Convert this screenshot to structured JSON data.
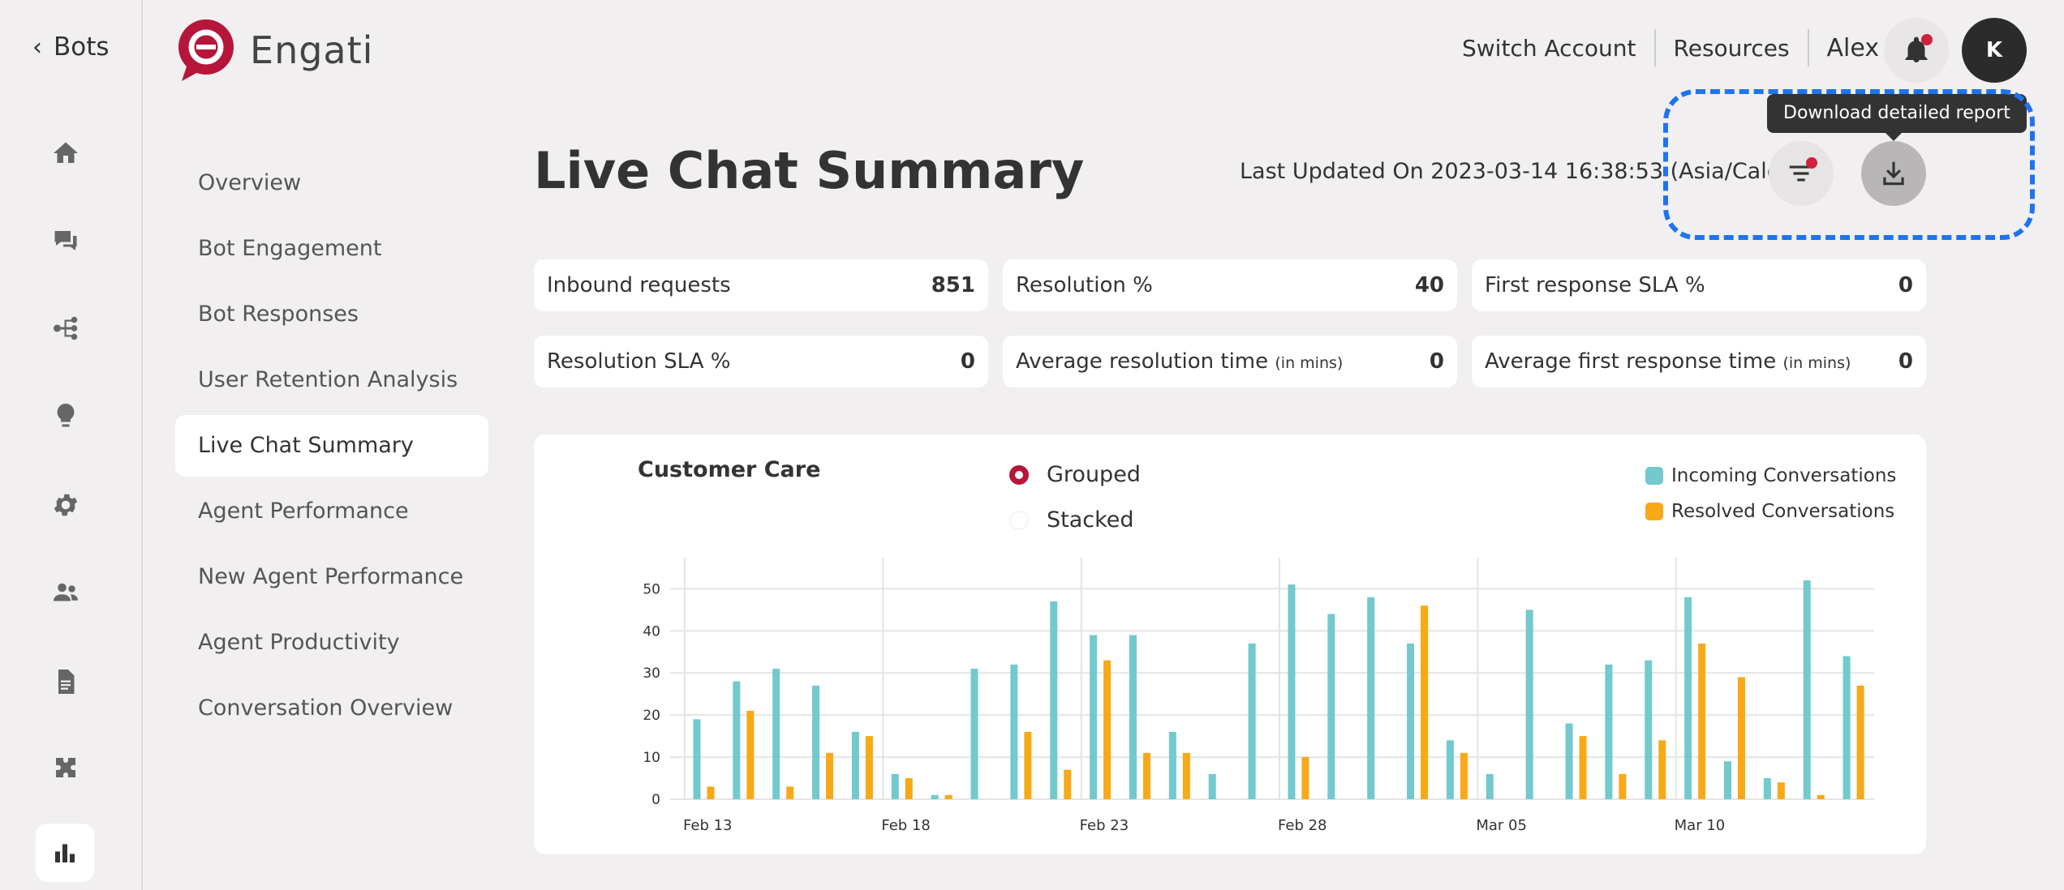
{
  "rail": {
    "back_label": "Bots",
    "icons": [
      "home-icon",
      "chat-icon",
      "flow-icon",
      "bulb-icon",
      "gear-icon",
      "users-icon",
      "document-icon",
      "puzzle-icon"
    ],
    "active_icon": "bar-chart-icon"
  },
  "logo": {
    "text": "Engati"
  },
  "header": {
    "switch_account": "Switch Account",
    "resources": "Resources",
    "user": "Alex",
    "avatar_initial": "K"
  },
  "subnav": {
    "items": [
      "Overview",
      "Bot Engagement",
      "Bot Responses",
      "User Retention Analysis",
      "Live Chat Summary",
      "Agent Performance",
      "New Agent Performance",
      "Agent Productivity",
      "Conversation Overview"
    ],
    "active_index": 4
  },
  "main": {
    "title": "Live Chat Summary",
    "last_updated": "Last Updated On 2023-03-14 16:38:53 (Asia/Calcutta)",
    "tooltip": "Download detailed report"
  },
  "stats": [
    {
      "label": "Inbound requests",
      "unit": "",
      "value": "851"
    },
    {
      "label": "Resolution %",
      "unit": "",
      "value": "40"
    },
    {
      "label": "First response SLA %",
      "unit": "",
      "value": "0"
    },
    {
      "label": "Resolution SLA %",
      "unit": "",
      "value": "0"
    },
    {
      "label": "Average resolution time",
      "unit": "(in mins)",
      "value": "0"
    },
    {
      "label": "Average first response time",
      "unit": "(in mins)",
      "value": "0"
    }
  ],
  "chart_controls": {
    "grouped": "Grouped",
    "stacked": "Stacked",
    "selected": "Grouped"
  },
  "colors": {
    "incoming": "#72c9ce",
    "resolved": "#f7a916",
    "accent": "#b5163a"
  },
  "chart_data": {
    "type": "bar",
    "title": "Customer Care",
    "x": [
      "Feb 13",
      "Feb 14",
      "Feb 15",
      "Feb 16",
      "Feb 17",
      "Feb 18",
      "Feb 19",
      "Feb 20",
      "Feb 21",
      "Feb 22",
      "Feb 23",
      "Feb 24",
      "Feb 25",
      "Feb 26",
      "Feb 27",
      "Feb 28",
      "Mar 01",
      "Mar 02",
      "Mar 03",
      "Mar 04",
      "Mar 05",
      "Mar 06",
      "Mar 07",
      "Mar 08",
      "Mar 09",
      "Mar 10",
      "Mar 11",
      "Mar 12",
      "Mar 13",
      "Mar 14"
    ],
    "tick_labels": [
      "Feb 13",
      "Feb 18",
      "Feb 23",
      "Feb 28",
      "Mar 05",
      "Mar 10"
    ],
    "series": [
      {
        "name": "Incoming Conversations",
        "values": [
          19,
          28,
          31,
          27,
          16,
          6,
          1,
          31,
          32,
          47,
          39,
          39,
          16,
          6,
          37,
          51,
          44,
          48,
          37,
          14,
          6,
          45,
          18,
          32,
          33,
          48,
          9,
          5,
          52,
          34
        ]
      },
      {
        "name": "Resolved Conversations",
        "values": [
          3,
          21,
          3,
          11,
          15,
          5,
          1,
          0,
          16,
          7,
          33,
          11,
          11,
          0,
          0,
          10,
          0,
          0,
          46,
          11,
          0,
          0,
          15,
          6,
          14,
          37,
          29,
          4,
          1,
          27
        ]
      }
    ],
    "y_ticks": [
      0,
      10,
      20,
      30,
      40,
      50
    ],
    "ylim": [
      0,
      52
    ],
    "legend_position": "top-right",
    "grid": true
  }
}
